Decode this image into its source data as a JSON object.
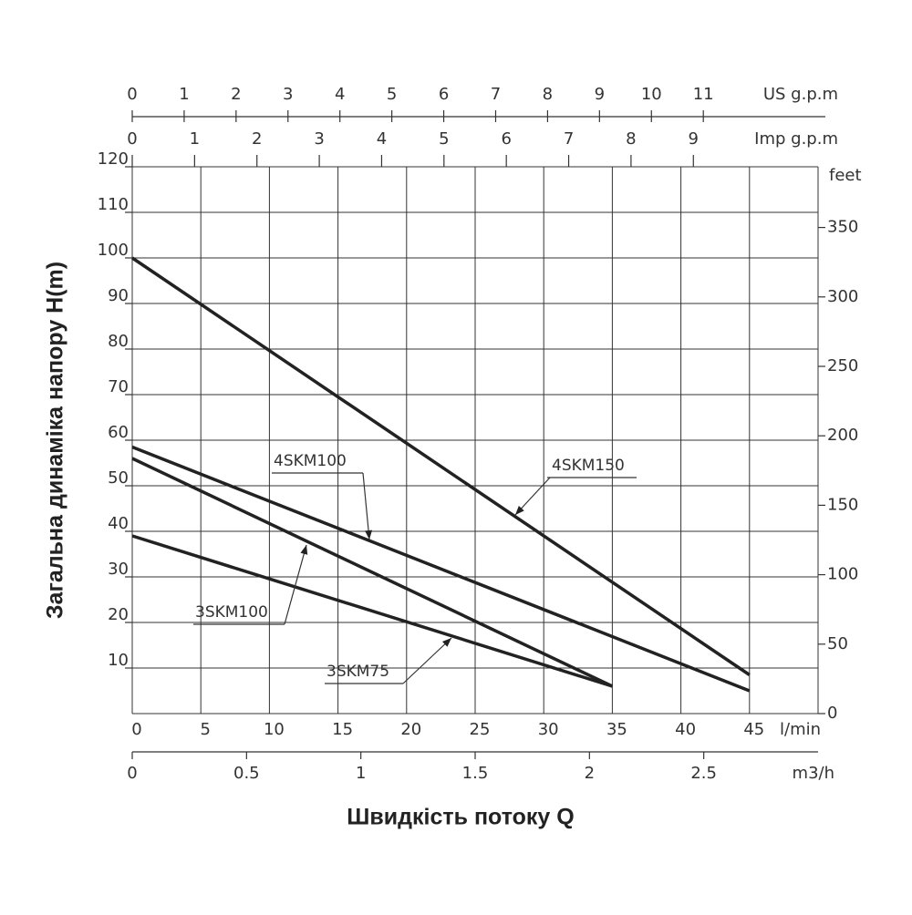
{
  "chart_data": {
    "type": "line",
    "xlabel": "Швидкість потоку Q",
    "ylabel": "Загальна динаміка напору H(m)",
    "x_unit": "l/min",
    "xlim": [
      0,
      50
    ],
    "xticks": [
      0,
      5,
      10,
      15,
      20,
      25,
      30,
      35,
      40,
      45
    ],
    "ylim": [
      0,
      120
    ],
    "yticks": [
      10,
      20,
      30,
      40,
      50,
      60,
      70,
      80,
      90,
      100,
      110,
      120
    ],
    "y2_unit": "feet",
    "y2lim": [
      0,
      393.7
    ],
    "y2ticks": [
      0,
      50,
      100,
      150,
      200,
      250,
      300,
      350
    ],
    "top_axes": [
      {
        "unit": "US g.p.m",
        "lim": [
          0,
          13.21
        ],
        "ticks": [
          0,
          1,
          2,
          3,
          4,
          5,
          6,
          7,
          8,
          9,
          10,
          11
        ]
      },
      {
        "unit": "Imp g.p.m",
        "lim": [
          0,
          11.0
        ],
        "ticks": [
          0,
          1,
          2,
          3,
          4,
          5,
          6,
          7,
          8,
          9
        ]
      }
    ],
    "bottom_axis": {
      "unit": "m3/h",
      "lim": [
        0,
        3.0
      ],
      "ticks": [
        0,
        0.5,
        1,
        1.5,
        2,
        2.5
      ]
    },
    "grid": true,
    "series": [
      {
        "name": "4SKM150",
        "color": "#222222",
        "x": [
          0,
          45
        ],
        "values": [
          100,
          8.5
        ]
      },
      {
        "name": "4SKM100",
        "color": "#222222",
        "x": [
          0,
          45
        ],
        "values": [
          58.5,
          5
        ]
      },
      {
        "name": "3SKM100",
        "color": "#222222",
        "x": [
          0,
          35
        ],
        "values": [
          56,
          6
        ]
      },
      {
        "name": "3SKM75",
        "color": "#222222",
        "x": [
          0,
          35
        ],
        "values": [
          39,
          6
        ]
      }
    ]
  }
}
